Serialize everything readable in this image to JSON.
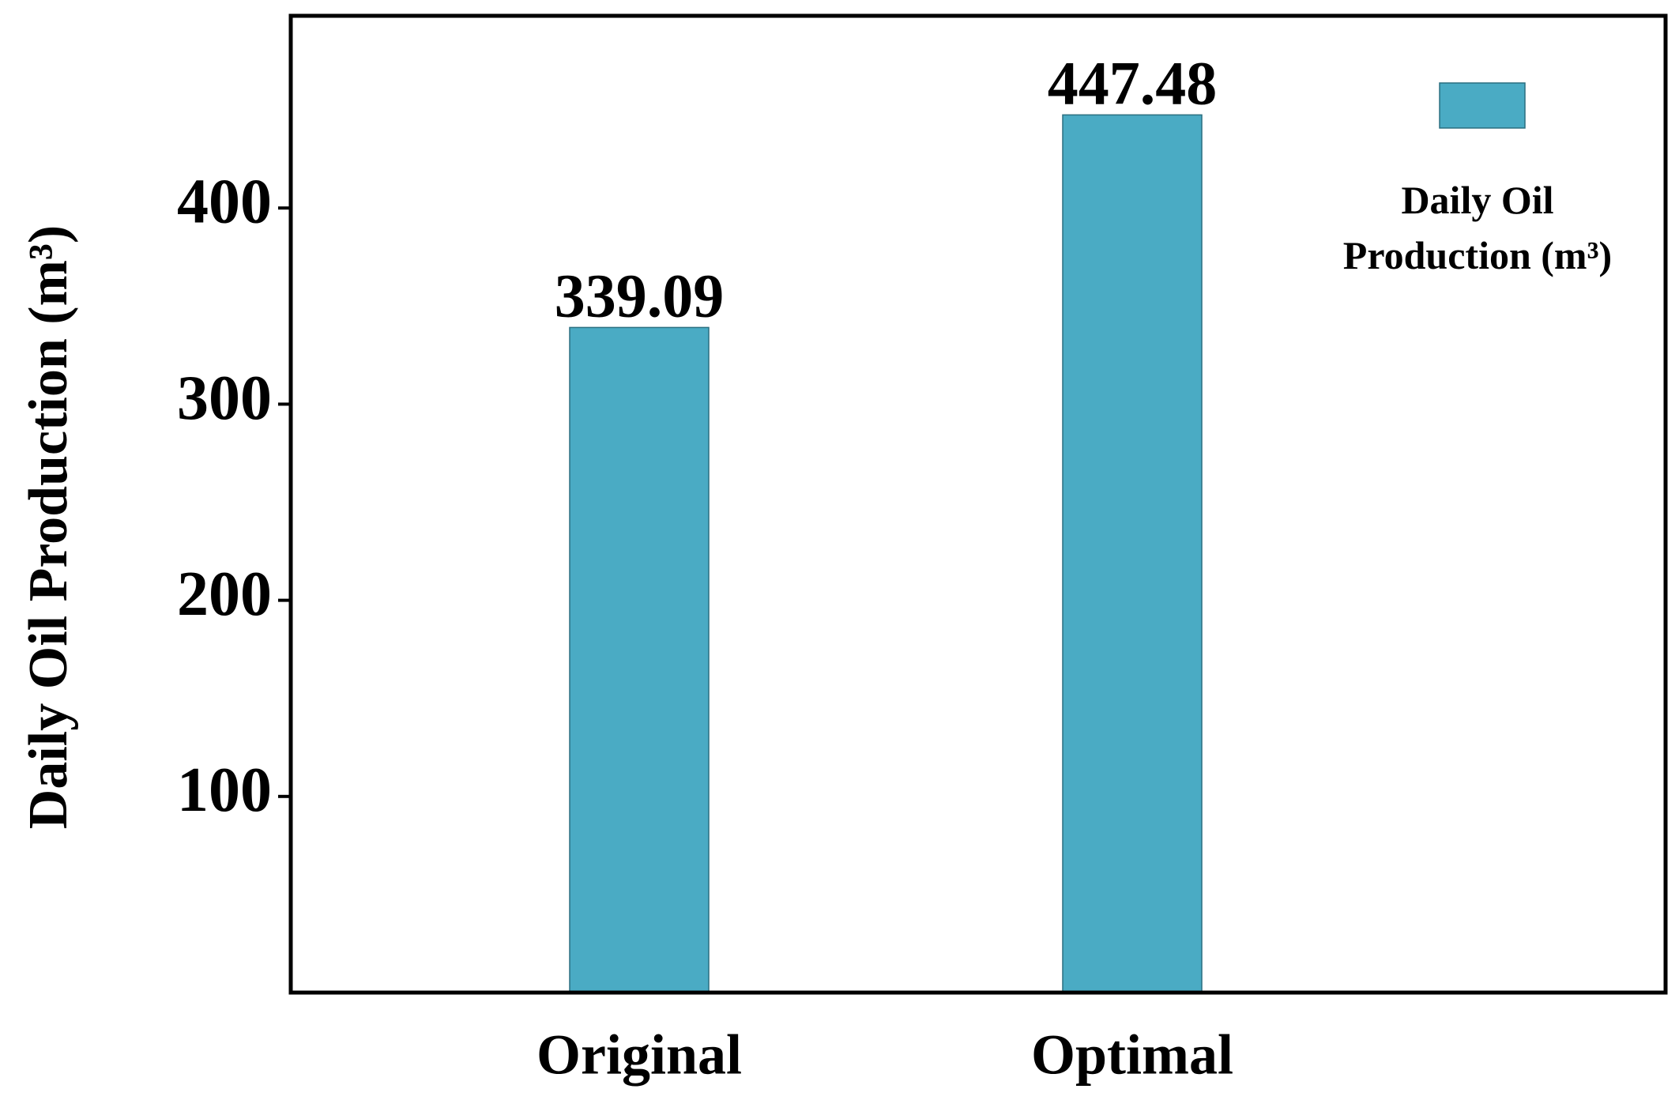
{
  "chart_data": {
    "type": "bar",
    "y_label": "Daily Oil Production (m³)",
    "categories": [
      "Original",
      "Optimal"
    ],
    "series": [
      {
        "name": "Daily Oil Production (m³)",
        "color": "#4aabc4",
        "values": [
          339.09,
          447.48
        ]
      }
    ],
    "ylim": [
      0,
      498
    ],
    "yticks": [
      100,
      200,
      300,
      400
    ],
    "legend": "top-right"
  }
}
